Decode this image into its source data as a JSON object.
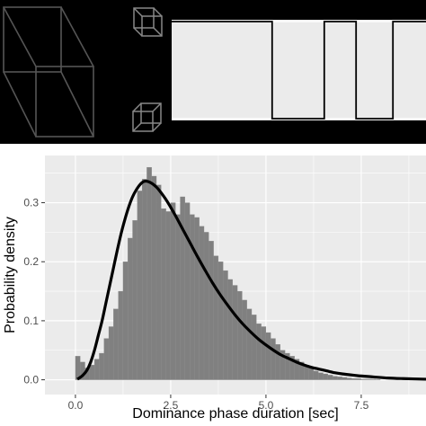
{
  "chart_data": {
    "type": "bar",
    "xlabel": "Dominance phase duration [sec]",
    "ylabel": "Probability density",
    "xlim": [
      -0.8,
      9.2
    ],
    "ylim": [
      -0.025,
      0.38
    ],
    "x_ticks": [
      "0.0",
      "2.5",
      "5.0",
      "7.5"
    ],
    "x_tick_values": [
      0,
      2.5,
      5,
      7.5
    ],
    "y_ticks": [
      "0.0",
      "0.1",
      "0.2",
      "0.3"
    ],
    "y_tick_values": [
      0,
      0.1,
      0.2,
      0.3
    ],
    "grid": true,
    "panel_background": "#ebebeb",
    "bar_color": "#808080",
    "curve_color": "#000000",
    "histogram": {
      "bin_width": 0.125,
      "bin_start": 0,
      "densities": [
        0.04,
        0.03,
        0.02,
        0.025,
        0.035,
        0.045,
        0.07,
        0.09,
        0.12,
        0.15,
        0.2,
        0.24,
        0.27,
        0.32,
        0.34,
        0.36,
        0.345,
        0.33,
        0.29,
        0.285,
        0.3,
        0.28,
        0.31,
        0.3,
        0.28,
        0.275,
        0.26,
        0.25,
        0.235,
        0.21,
        0.2,
        0.185,
        0.17,
        0.16,
        0.15,
        0.135,
        0.12,
        0.11,
        0.095,
        0.09,
        0.08,
        0.07,
        0.06,
        0.05,
        0.045,
        0.04,
        0.035,
        0.03,
        0.025,
        0.02,
        0.015,
        0.012,
        0.01,
        0.008,
        0.006,
        0.005,
        0.004,
        0.003,
        0.002,
        0.002,
        0.001,
        0.001,
        0.001,
        0.0005
      ]
    },
    "fitted_curve": {
      "x": [
        0.05,
        0.1,
        0.2,
        0.3,
        0.4,
        0.5,
        0.6,
        0.7,
        0.8,
        0.9,
        1.0,
        1.1,
        1.2,
        1.3,
        1.4,
        1.5,
        1.6,
        1.7,
        1.8,
        1.9,
        2.0,
        2.1,
        2.2,
        2.4,
        2.6,
        2.8,
        3.0,
        3.2,
        3.4,
        3.6,
        3.8,
        4.0,
        4.2,
        4.4,
        4.6,
        4.8,
        5.0,
        5.2,
        5.4,
        5.6,
        5.8,
        6.0,
        6.2,
        6.4,
        6.6,
        6.8,
        7.0,
        7.4,
        7.8,
        8.2,
        8.6,
        9.2
      ],
      "y": [
        0.001,
        0.003,
        0.008,
        0.016,
        0.03,
        0.05,
        0.075,
        0.1,
        0.13,
        0.16,
        0.19,
        0.22,
        0.248,
        0.272,
        0.293,
        0.31,
        0.322,
        0.331,
        0.336,
        0.336,
        0.333,
        0.328,
        0.321,
        0.303,
        0.281,
        0.257,
        0.233,
        0.209,
        0.186,
        0.164,
        0.144,
        0.126,
        0.109,
        0.094,
        0.081,
        0.069,
        0.059,
        0.05,
        0.042,
        0.036,
        0.03,
        0.025,
        0.021,
        0.018,
        0.015,
        0.012,
        0.01,
        0.007,
        0.005,
        0.003,
        0.002,
        0.001
      ]
    }
  },
  "illustration": {
    "stimulus": "necker-cube",
    "percept_cubes": [
      "small-cube-top",
      "small-cube-bottom"
    ],
    "timecourse": {
      "levels": [
        "high",
        "low"
      ],
      "states": [
        "high",
        "low",
        "high",
        "low",
        "high"
      ],
      "switch_times": [
        0.395,
        0.6,
        0.725,
        0.87
      ]
    }
  }
}
